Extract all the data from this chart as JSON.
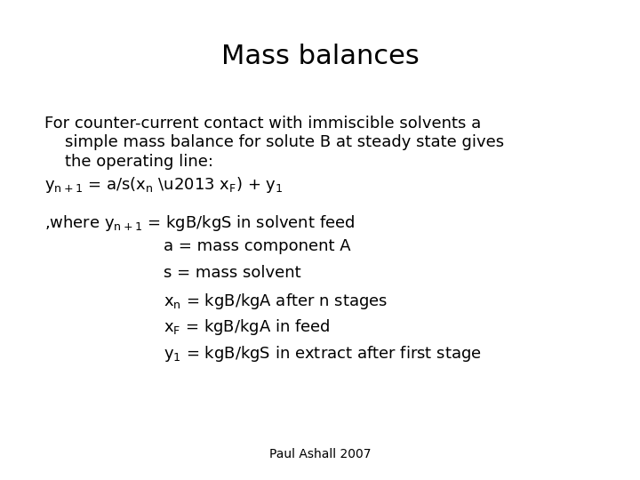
{
  "title": "Mass balances",
  "background_color": "#ffffff",
  "text_color": "#000000",
  "title_fontsize": 22,
  "body_fontsize": 13,
  "footer_fontsize": 10,
  "footer": "Paul Ashall 2007",
  "font_family": "DejaVu Sans Condensed"
}
